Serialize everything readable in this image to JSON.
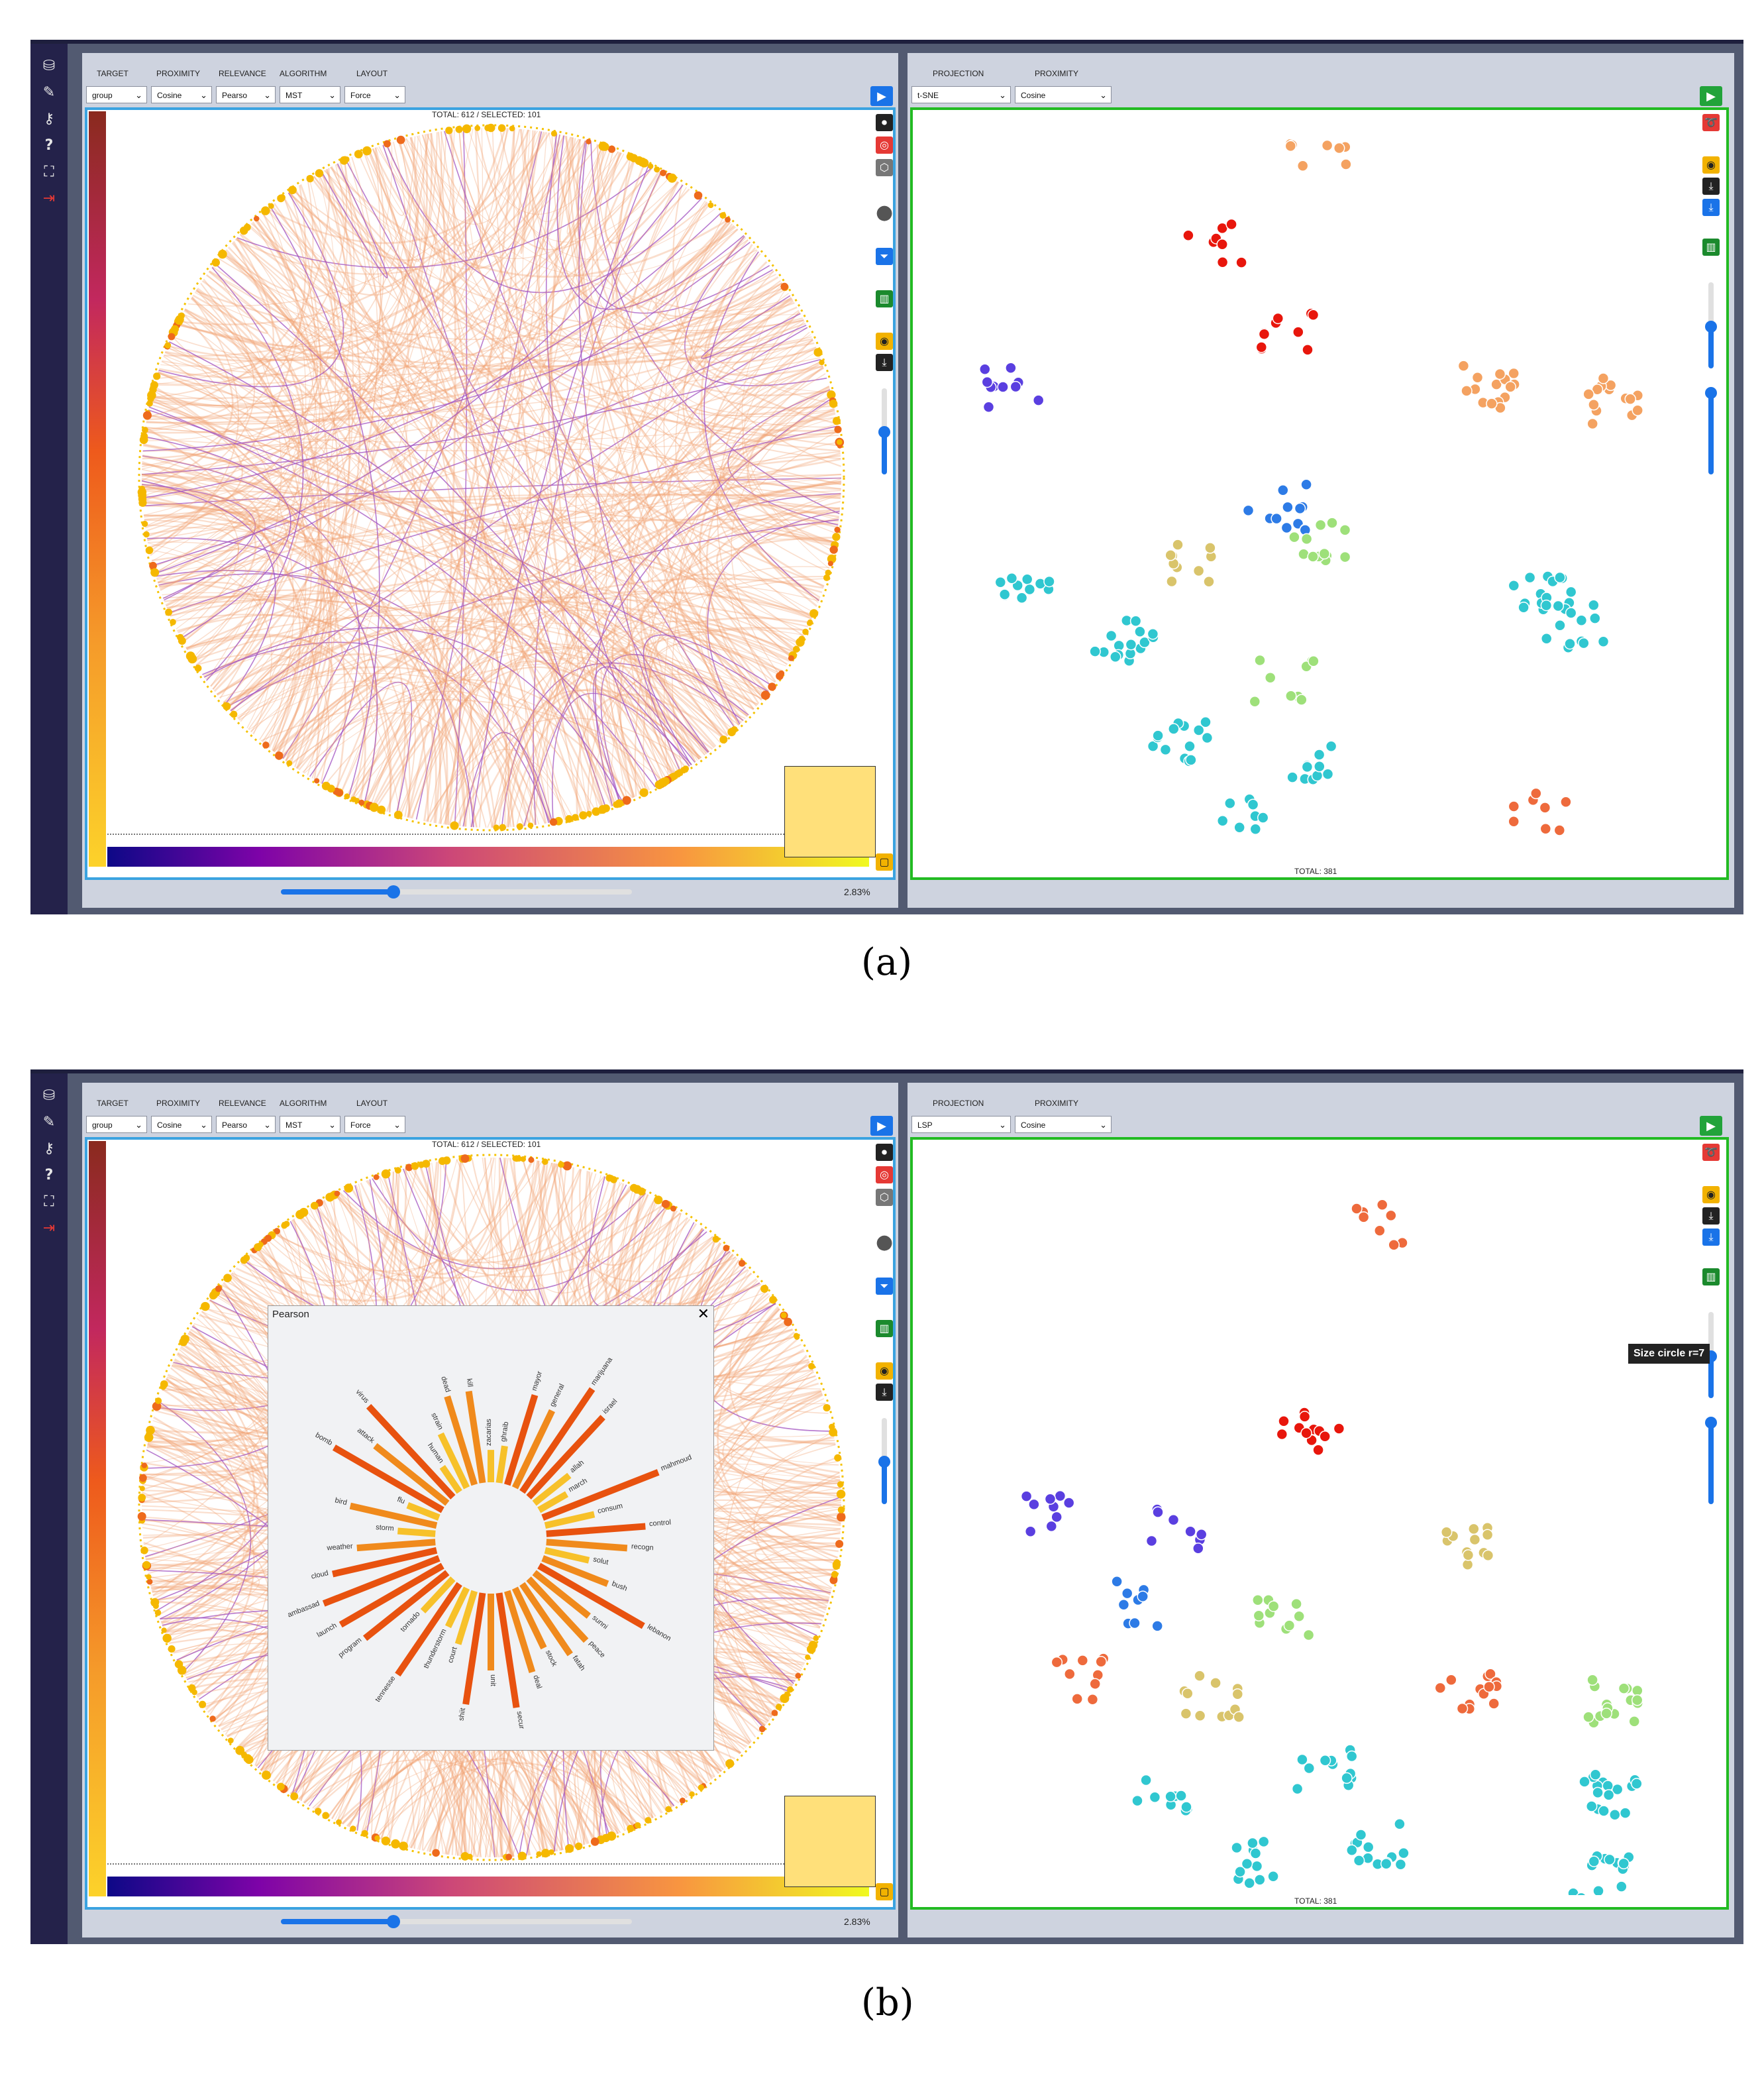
{
  "figure": {
    "caption_a": "(a)",
    "caption_b": "(b)"
  },
  "sidebar": {
    "icons": [
      "database-icon",
      "edit-icon",
      "key-icon",
      "help-icon",
      "fullscreen-icon",
      "logout-icon"
    ]
  },
  "panels": [
    {
      "id": "a",
      "left": {
        "labels": [
          "TARGET",
          "PROXIMITY",
          "RELEVANCE",
          "ALGORITHM",
          "LAYOUT"
        ],
        "selects": [
          "group",
          "Cosine",
          "Pearso",
          "MST",
          "Force"
        ],
        "status": "TOTAL: 612 / SELECTED: 101",
        "zoom": "2.83%",
        "slider_value": 0.32
      },
      "right": {
        "labels": [
          "PROJECTION",
          "PROXIMITY"
        ],
        "selects": [
          "t-SNE",
          "Cosine"
        ],
        "total": "TOTAL: 381"
      }
    },
    {
      "id": "b",
      "left": {
        "labels": [
          "TARGET",
          "PROXIMITY",
          "RELEVANCE",
          "ALGORITHM",
          "LAYOUT"
        ],
        "selects": [
          "group",
          "Cosine",
          "Pearso",
          "MST",
          "Force"
        ],
        "status": "TOTAL: 612 / SELECTED: 101",
        "zoom": "2.83%",
        "slider_value": 0.32,
        "popup": {
          "title": "Pearson",
          "close": "✕",
          "words": [
            "zacarias",
            "ghraib",
            "mayor",
            "general",
            "marijuana",
            "israel",
            "allah",
            "march",
            "mahmoud",
            "consum",
            "control",
            "recogn",
            "solut",
            "bush",
            "lebanon",
            "sunni",
            "peace",
            "fatah",
            "stock",
            "deal",
            "secur",
            "unit",
            "shiit",
            "court",
            "thunderstorm",
            "tennesse",
            "tornado",
            "program",
            "launch",
            "ambassad",
            "cloud",
            "weather",
            "storm",
            "bird",
            "flu",
            "bomb",
            "attack",
            "virus",
            "human",
            "strain",
            "dead",
            "kill"
          ]
        }
      },
      "right": {
        "labels": [
          "PROJECTION",
          "PROXIMITY"
        ],
        "selects": [
          "LSP",
          "Cosine"
        ],
        "total": "TOTAL: 381",
        "tooltip": "Size circle r=7"
      }
    }
  ],
  "colors": {
    "edge": "#f0a070",
    "edge_dark": "#a050c0",
    "node": "#f5b800",
    "green_border": "#22bb22",
    "blue_border": "#3ba3e0",
    "sidebar": "#24224a",
    "panel": "#ced3df"
  }
}
